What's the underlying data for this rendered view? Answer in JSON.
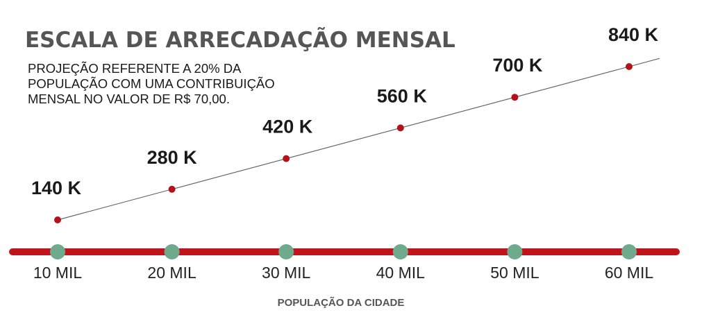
{
  "chart_data": {
    "type": "line",
    "title": "ESCALA DE ARRECADAÇÃO MENSAL",
    "subtitle_lines": [
      "PROJEÇÃO REFERENTE A 20% DA",
      "POPULAÇÃO COM UMA CONTRIBUIÇÃO",
      "MENSAL NO VALOR DE R$ 70,00."
    ],
    "xlabel": "POPULAÇÃO DA CIDADE",
    "ylabel": "",
    "categories": [
      "10 MIL",
      "20 MIL",
      "30 MIL",
      "40 MIL",
      "50 MIL",
      "60 MIL"
    ],
    "x": [
      10000,
      20000,
      30000,
      40000,
      50000,
      60000
    ],
    "values": [
      140000,
      280000,
      420000,
      560000,
      700000,
      840000
    ],
    "data_labels": [
      "140 K",
      "280 K",
      "420 K",
      "560 K",
      "700 K",
      "840 K"
    ],
    "ylim": [
      0,
      900000
    ],
    "grid": false,
    "legend": "none"
  },
  "colors": {
    "axis_bar": "#c0141c",
    "axis_marker": "#6faa8c",
    "data_point": "#b3121a",
    "trend_line": "#666666",
    "title": "#555555",
    "text": "#1a1a1a"
  }
}
